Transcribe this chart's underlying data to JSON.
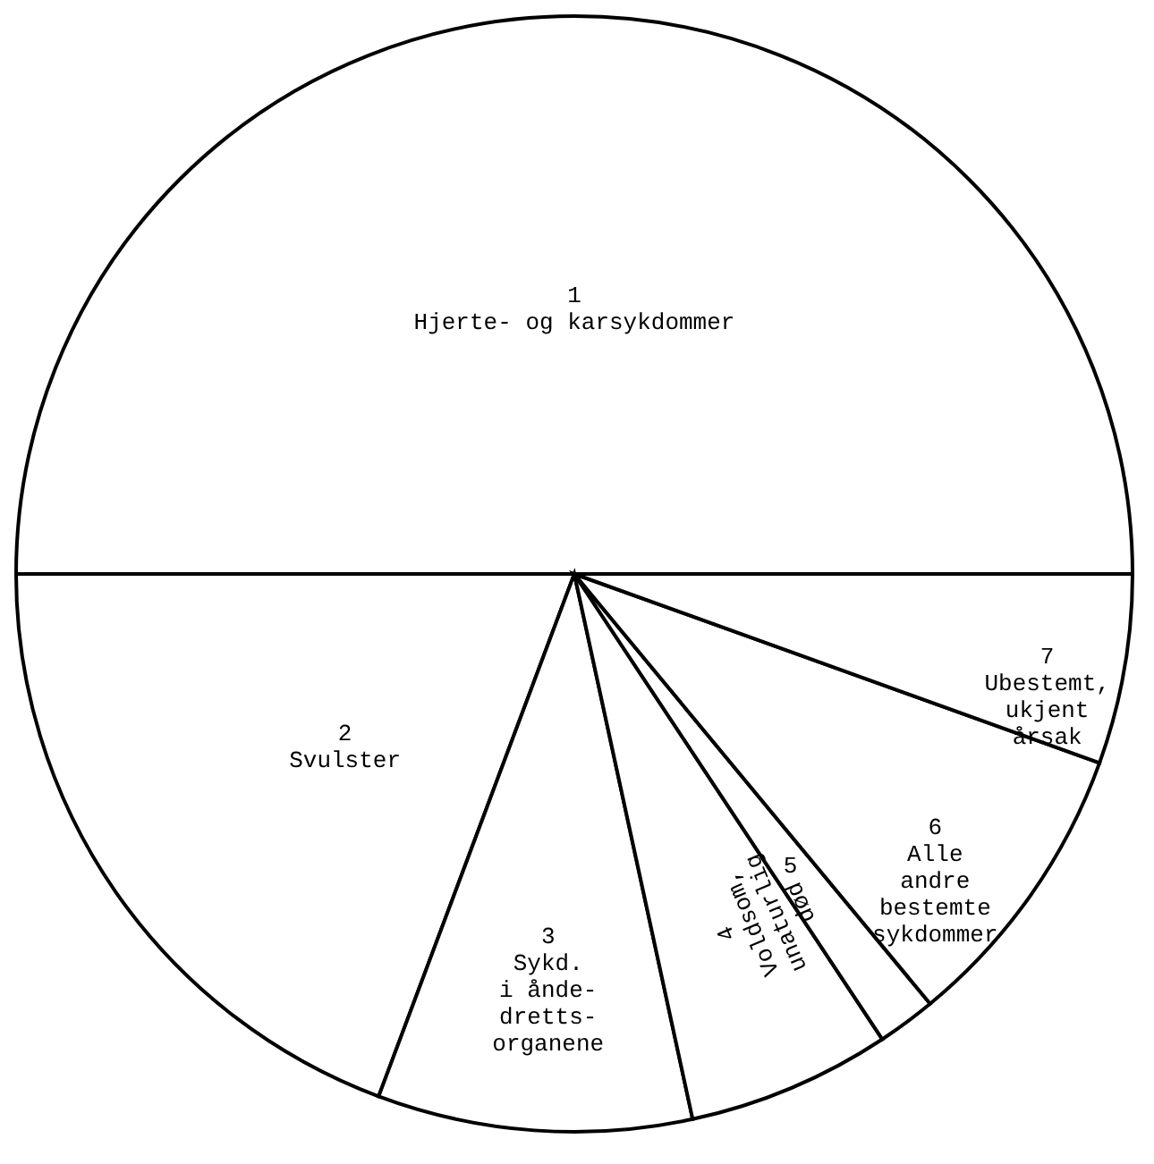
{
  "chart_data": {
    "type": "pie",
    "categories": [
      "1\nHjerte- og karsykdommer",
      "2\nSvulster",
      "3\nSykd.\ni ånde-\ndretts-\norganene",
      "4\nVoldsom,\nunaturlig\ndød",
      "5",
      "6\nAlle\nandre\nbestemte\nsykdommer",
      "7\nUbestemt,\nukjent\nårsak"
    ],
    "values": [
      50,
      19.3,
      9.1,
      5.9,
      1.7,
      8.5,
      5.5
    ],
    "colors": [
      "#ffffff",
      "#ffffff",
      "#ffffff",
      "#ffffff",
      "#ffffff",
      "#ffffff",
      "#ffffff"
    ]
  }
}
